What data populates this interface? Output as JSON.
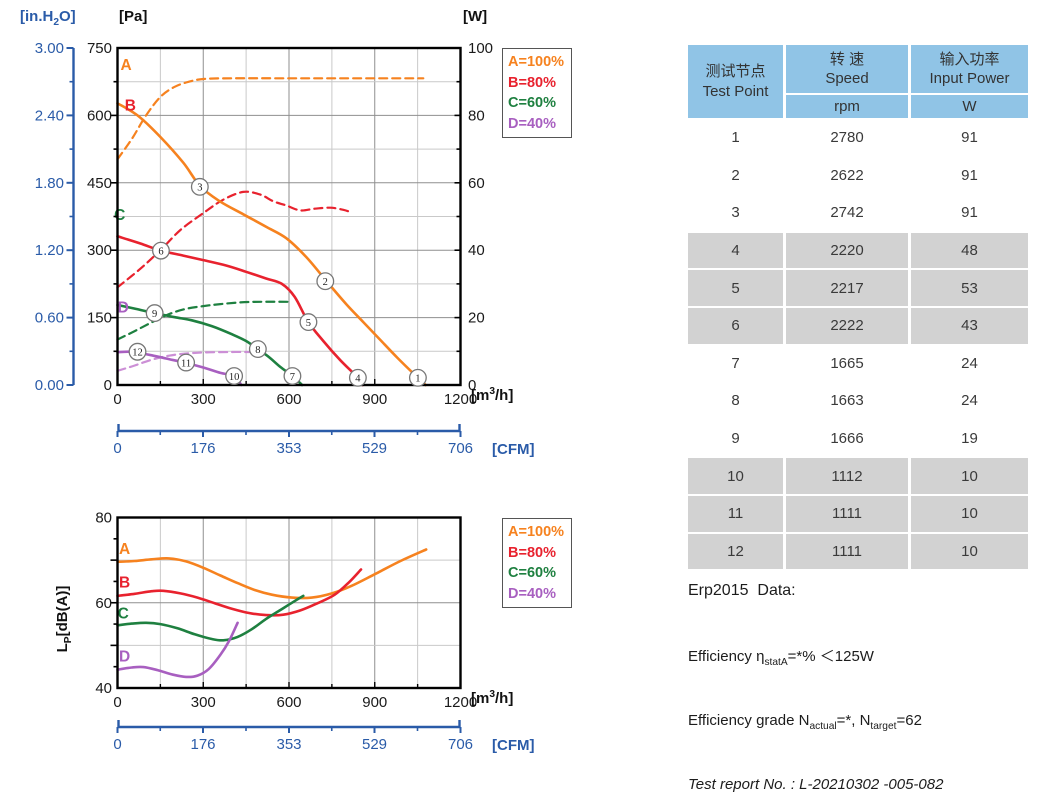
{
  "colors": {
    "blue": "#2A5BA8",
    "orange": "#F6821F",
    "red": "#E8222E",
    "green": "#1E8040",
    "purple": "#A85FC0",
    "purple_light": "#CC8FD6",
    "grid_major": "#8F8F8F",
    "grid_minor": "#C9C9C9",
    "axis": "#000000",
    "table_header_blue": "#90C4E6",
    "table_row_gray": "#D2D2D2",
    "text": "#1a1a1a"
  },
  "units": {
    "inh2o_pre": "[in.H",
    "inh2o_sub": "2",
    "inh2o_post": "O]",
    "pa": "[Pa]",
    "w": "[W]",
    "flow_pre": "[m",
    "flow_sup": "3",
    "flow_post": "/h]",
    "cfm": "[CFM]",
    "lp_pre": "L",
    "lp_sub": "P",
    "lp_post": "[dB(A)]"
  },
  "legend": [
    {
      "label": "A=100%",
      "color_key": "orange"
    },
    {
      "label": "B=80%",
      "color_key": "red"
    },
    {
      "label": "C=60%",
      "color_key": "green"
    },
    {
      "label": "D=40%",
      "color_key": "purple"
    }
  ],
  "chart_data": [
    {
      "type": "line",
      "name": "static-pressure-and-input-power-vs-airflow",
      "x": {
        "unit": "m3/h",
        "range": [
          0,
          1200
        ],
        "ticks": [
          0,
          300,
          600,
          900,
          1200
        ],
        "minor_step": 150
      },
      "y_pressure": {
        "unit": "Pa",
        "range": [
          0,
          750
        ],
        "ticks": [
          0,
          150,
          300,
          450,
          600,
          750
        ],
        "minor_step": 75
      },
      "y_pressure_inh2o": {
        "unit": "in.H2O",
        "ticks": [
          "0.00",
          "0.60",
          "1.20",
          "1.80",
          "2.40",
          "3.00"
        ]
      },
      "y_power": {
        "unit": "W",
        "range": [
          0,
          100
        ],
        "ticks": [
          0,
          20,
          40,
          60,
          80,
          100
        ],
        "minor_step": 10
      },
      "x_cfm": {
        "unit": "CFM",
        "range": [
          0,
          706
        ],
        "ticks": [
          0,
          176,
          353,
          529,
          706
        ]
      },
      "grid": true,
      "legend_position": "outside-top-right",
      "series": [
        {
          "name": "A-power",
          "color_key": "orange",
          "style": "dashed",
          "axis": "w",
          "points": [
            [
              0,
              67
            ],
            [
              50,
              73
            ],
            [
              100,
              80
            ],
            [
              150,
              85.5
            ],
            [
              200,
              88.5
            ],
            [
              250,
              90
            ],
            [
              300,
              90.8
            ],
            [
              400,
              91
            ],
            [
              600,
              91
            ],
            [
              800,
              91
            ],
            [
              1000,
              91
            ],
            [
              1070,
              91
            ]
          ]
        },
        {
          "name": "B-power",
          "color_key": "red",
          "style": "dashed",
          "axis": "w",
          "points": [
            [
              0,
              29
            ],
            [
              80,
              34.5
            ],
            [
              150,
              40
            ],
            [
              220,
              46
            ],
            [
              300,
              51
            ],
            [
              370,
              55
            ],
            [
              440,
              57.3
            ],
            [
              500,
              56.5
            ],
            [
              545,
              54.5
            ],
            [
              590,
              53.3
            ],
            [
              640,
              51.8
            ],
            [
              690,
              52.3
            ],
            [
              745,
              52.6
            ],
            [
              790,
              52
            ],
            [
              820,
              51.2
            ]
          ]
        },
        {
          "name": "C-power",
          "color_key": "green",
          "style": "dashed",
          "axis": "w",
          "points": [
            [
              0,
              13.5
            ],
            [
              60,
              16
            ],
            [
              120,
              18.6
            ],
            [
              180,
              21
            ],
            [
              240,
              22.6
            ],
            [
              300,
              23.4
            ],
            [
              360,
              24
            ],
            [
              430,
              24.5
            ],
            [
              500,
              24.7
            ],
            [
              595,
              24.7
            ]
          ]
        },
        {
          "name": "D-power",
          "color_key": "purple_light",
          "style": "dashed",
          "axis": "w",
          "points": [
            [
              0,
              4.2
            ],
            [
              60,
              5.8
            ],
            [
              120,
              7.5
            ],
            [
              180,
              8.7
            ],
            [
              250,
              9.4
            ],
            [
              320,
              9.7
            ],
            [
              400,
              9.8
            ],
            [
              462,
              9.8
            ]
          ]
        },
        {
          "name": "A-pressure",
          "color_key": "orange",
          "style": "solid",
          "axis": "pa",
          "label": "A",
          "label_at": [
            30,
            712
          ],
          "points": [
            [
              0,
              627
            ],
            [
              70,
              600
            ],
            [
              150,
              552
            ],
            [
              230,
              495
            ],
            [
              290,
              442
            ],
            [
              360,
              408
            ],
            [
              440,
              380
            ],
            [
              520,
              352
            ],
            [
              590,
              327
            ],
            [
              660,
              285
            ],
            [
              730,
              232
            ],
            [
              800,
              180
            ],
            [
              860,
              140
            ],
            [
              920,
              100
            ],
            [
              980,
              60
            ],
            [
              1051,
              16
            ],
            [
              1078,
              0
            ]
          ]
        },
        {
          "name": "B-pressure",
          "color_key": "red",
          "style": "solid",
          "axis": "pa",
          "label": "B",
          "label_at": [
            45,
            622
          ],
          "points": [
            [
              0,
              331
            ],
            [
              80,
              315
            ],
            [
              152,
              299
            ],
            [
              230,
              288
            ],
            [
              300,
              278
            ],
            [
              380,
              266
            ],
            [
              450,
              252
            ],
            [
              520,
              237
            ],
            [
              575,
              225
            ],
            [
              620,
              196
            ],
            [
              668,
              140
            ],
            [
              720,
              98
            ],
            [
              780,
              55
            ],
            [
              841,
              16
            ],
            [
              858,
              0
            ]
          ]
        },
        {
          "name": "C-pressure",
          "color_key": "green",
          "style": "solid",
          "axis": "pa",
          "label": "C",
          "label_at": [
            8,
            378
          ],
          "points": [
            [
              0,
              178
            ],
            [
              60,
              170
            ],
            [
              130,
              160
            ],
            [
              200,
              151
            ],
            [
              260,
              144
            ],
            [
              330,
              131
            ],
            [
              400,
              113
            ],
            [
              450,
              98
            ],
            [
              491,
              80
            ],
            [
              530,
              62
            ],
            [
              570,
              40
            ],
            [
              612,
              20
            ],
            [
              646,
              0
            ]
          ]
        },
        {
          "name": "D-pressure",
          "color_key": "purple",
          "style": "solid",
          "axis": "pa",
          "label": "D",
          "label_at": [
            20,
            172
          ],
          "points": [
            [
              0,
              73
            ],
            [
              40,
              74
            ],
            [
              70,
              72
            ],
            [
              120,
              66
            ],
            [
              170,
              59
            ],
            [
              240,
              49
            ],
            [
              300,
              39
            ],
            [
              360,
              27
            ],
            [
              408,
              20
            ],
            [
              433,
              0
            ]
          ]
        }
      ],
      "test_points": [
        {
          "n": "1",
          "x": 1051,
          "pa": 16
        },
        {
          "n": "2",
          "x": 727,
          "pa": 231
        },
        {
          "n": "3",
          "x": 288,
          "pa": 441
        },
        {
          "n": "4",
          "x": 841,
          "pa": 16
        },
        {
          "n": "5",
          "x": 668,
          "pa": 140
        },
        {
          "n": "6",
          "x": 152,
          "pa": 299
        },
        {
          "n": "7",
          "x": 612,
          "pa": 20
        },
        {
          "n": "8",
          "x": 491,
          "pa": 80
        },
        {
          "n": "9",
          "x": 130,
          "pa": 160
        },
        {
          "n": "10",
          "x": 408,
          "pa": 20
        },
        {
          "n": "11",
          "x": 240,
          "pa": 50
        },
        {
          "n": "12",
          "x": 70,
          "pa": 74
        }
      ]
    },
    {
      "type": "line",
      "name": "sound-pressure-level-vs-airflow",
      "x": {
        "unit": "m3/h",
        "range": [
          0,
          1200
        ],
        "ticks": [
          0,
          300,
          600,
          900,
          1200
        ],
        "minor_step": 150
      },
      "y": {
        "unit": "dB(A)",
        "range": [
          40,
          80
        ],
        "ticks": [
          40,
          60,
          80
        ],
        "grid": [
          50,
          60,
          70
        ],
        "minor_step": 5
      },
      "x_cfm": {
        "unit": "CFM",
        "range": [
          0,
          706
        ],
        "ticks": [
          0,
          176,
          353,
          529,
          706
        ]
      },
      "grid": true,
      "legend_position": "outside-top-right",
      "series": [
        {
          "name": "A-noise",
          "color_key": "orange",
          "style": "solid",
          "axis": "db",
          "label": "A",
          "label_at": [
            25,
            72.6
          ],
          "points": [
            [
              0,
              69.6
            ],
            [
              60,
              69.8
            ],
            [
              120,
              70.2
            ],
            [
              180,
              70.4
            ],
            [
              240,
              69.7
            ],
            [
              300,
              68.2
            ],
            [
              360,
              66.4
            ],
            [
              420,
              64.6
            ],
            [
              480,
              63
            ],
            [
              540,
              61.9
            ],
            [
              610,
              61.2
            ],
            [
              680,
              61.2
            ],
            [
              750,
              62.2
            ],
            [
              820,
              64
            ],
            [
              900,
              66.7
            ],
            [
              990,
              69.8
            ],
            [
              1080,
              72.5
            ]
          ]
        },
        {
          "name": "B-noise",
          "color_key": "red",
          "style": "solid",
          "axis": "db",
          "label": "B",
          "label_at": [
            25,
            64.7
          ],
          "points": [
            [
              0,
              61.6
            ],
            [
              60,
              62.1
            ],
            [
              120,
              62.7
            ],
            [
              160,
              62.8
            ],
            [
              220,
              62.2
            ],
            [
              280,
              61.2
            ],
            [
              340,
              59.9
            ],
            [
              400,
              58.6
            ],
            [
              460,
              57.6
            ],
            [
              520,
              57.1
            ],
            [
              580,
              57.2
            ],
            [
              640,
              58.2
            ],
            [
              700,
              59.9
            ],
            [
              760,
              61.9
            ],
            [
              810,
              64.8
            ],
            [
              852,
              67.8
            ]
          ]
        },
        {
          "name": "C-noise",
          "color_key": "green",
          "style": "solid",
          "axis": "db",
          "label": "C",
          "label_at": [
            20,
            57.5
          ],
          "points": [
            [
              0,
              54.7
            ],
            [
              50,
              55.1
            ],
            [
              100,
              55.3
            ],
            [
              150,
              55
            ],
            [
              210,
              54
            ],
            [
              270,
              52.6
            ],
            [
              330,
              51.5
            ],
            [
              370,
              51.2
            ],
            [
              420,
              52
            ],
            [
              470,
              53.8
            ],
            [
              520,
              56.2
            ],
            [
              570,
              58.3
            ],
            [
              610,
              60
            ],
            [
              650,
              61.6
            ]
          ]
        },
        {
          "name": "D-noise",
          "color_key": "purple",
          "style": "solid",
          "axis": "db",
          "label": "D",
          "label_at": [
            25,
            47.4
          ],
          "points": [
            [
              0,
              44.3
            ],
            [
              50,
              44.8
            ],
            [
              90,
              44.9
            ],
            [
              140,
              44.2
            ],
            [
              190,
              43.2
            ],
            [
              240,
              42.6
            ],
            [
              280,
              42.9
            ],
            [
              320,
              44.5
            ],
            [
              360,
              47.8
            ],
            [
              390,
              51
            ],
            [
              420,
              55.3
            ]
          ]
        }
      ]
    }
  ],
  "table": {
    "header": {
      "col1_zh": "测试节点",
      "col1_en": "Test Point",
      "col2_zh": "转 速",
      "col2_en": "Speed",
      "col2_unit": "rpm",
      "col3_zh": "输入功率",
      "col3_en": "Input Power",
      "col3_unit": "W"
    },
    "rows": [
      {
        "point": "1",
        "rpm": "2780",
        "w": "91",
        "shaded": false
      },
      {
        "point": "2",
        "rpm": "2622",
        "w": "91",
        "shaded": false
      },
      {
        "point": "3",
        "rpm": "2742",
        "w": "91",
        "shaded": false
      },
      {
        "point": "4",
        "rpm": "2220",
        "w": "48",
        "shaded": true
      },
      {
        "point": "5",
        "rpm": "2217",
        "w": "53",
        "shaded": true
      },
      {
        "point": "6",
        "rpm": "2222",
        "w": "43",
        "shaded": true
      },
      {
        "point": "7",
        "rpm": "1665",
        "w": "24",
        "shaded": false
      },
      {
        "point": "8",
        "rpm": "1663",
        "w": "24",
        "shaded": false
      },
      {
        "point": "9",
        "rpm": "1666",
        "w": "19",
        "shaded": false
      },
      {
        "point": "10",
        "rpm": "1112",
        "w": "10",
        "shaded": true
      },
      {
        "point": "11",
        "rpm": "1111",
        "w": "10",
        "shaded": true
      },
      {
        "point": "12",
        "rpm": "1111",
        "w": "10",
        "shaded": true
      }
    ]
  },
  "erp": {
    "title": "Erp2015  Data:",
    "eff_prefix": "Efficiency η",
    "eff_sub": "statA",
    "eff_rest": "=*% ＜125W",
    "grade_prefix": "Efficiency grade N",
    "grade_sub1": "actual",
    "grade_mid": "=*, N",
    "grade_sub2": "target",
    "grade_rest": "=62",
    "report": "Test report No. : L-20210302 -005-082"
  }
}
